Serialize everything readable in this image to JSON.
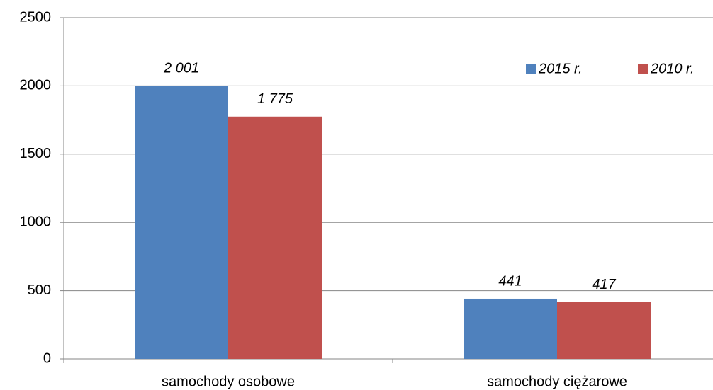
{
  "chart_data": {
    "type": "bar",
    "categories": [
      "samochody osobowe",
      "samochody ciężarowe"
    ],
    "series": [
      {
        "name": "2015 r.",
        "color": "#4f81bd",
        "values": [
          2001,
          441
        ],
        "value_labels": [
          "2 001",
          "441"
        ]
      },
      {
        "name": "2010 r.",
        "color": "#c0504d",
        "values": [
          1775,
          417
        ],
        "value_labels": [
          "1 775",
          "417"
        ]
      }
    ],
    "ylim": [
      0,
      2500
    ],
    "yticks": [
      0,
      500,
      1000,
      1500,
      2000,
      2500
    ],
    "grid": true,
    "legend": "top-right"
  }
}
